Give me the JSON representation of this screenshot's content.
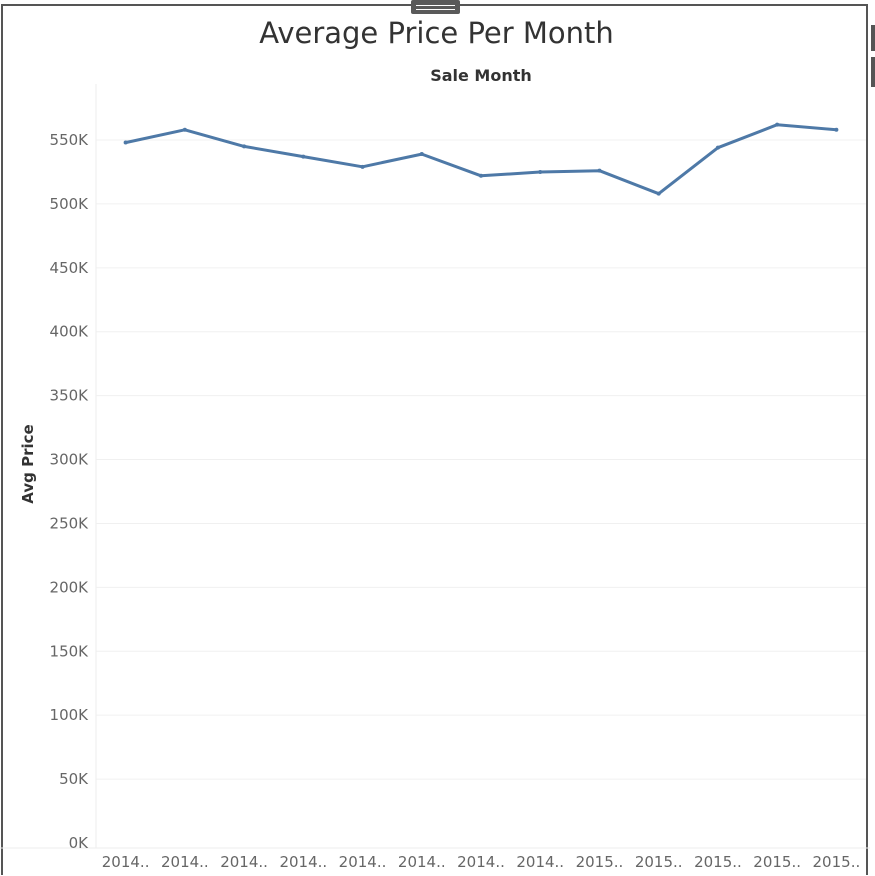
{
  "chart_data": {
    "type": "line",
    "title": "Average Price Per Month",
    "xlabel": "Sale Month",
    "ylabel": "Avg Price",
    "categories": [
      "2014..",
      "2014..",
      "2014..",
      "2014..",
      "2014..",
      "2014..",
      "2014..",
      "2014..",
      "2015..",
      "2015..",
      "2015..",
      "2015..",
      "2015.."
    ],
    "series": [
      {
        "values": [
          548000,
          558000,
          545000,
          537000,
          529000,
          539000,
          522000,
          525000,
          526000,
          508000,
          544000,
          562000,
          558000
        ]
      }
    ],
    "yticks": [
      0,
      50000,
      100000,
      150000,
      200000,
      250000,
      300000,
      350000,
      400000,
      450000,
      500000,
      550000
    ],
    "ytick_labels": [
      "0K",
      "50K",
      "100K",
      "150K",
      "200K",
      "250K",
      "300K",
      "350K",
      "400K",
      "450K",
      "500K",
      "550K"
    ],
    "ylim": [
      0,
      580000
    ],
    "grid": true,
    "line_color": "#4e79a7"
  }
}
